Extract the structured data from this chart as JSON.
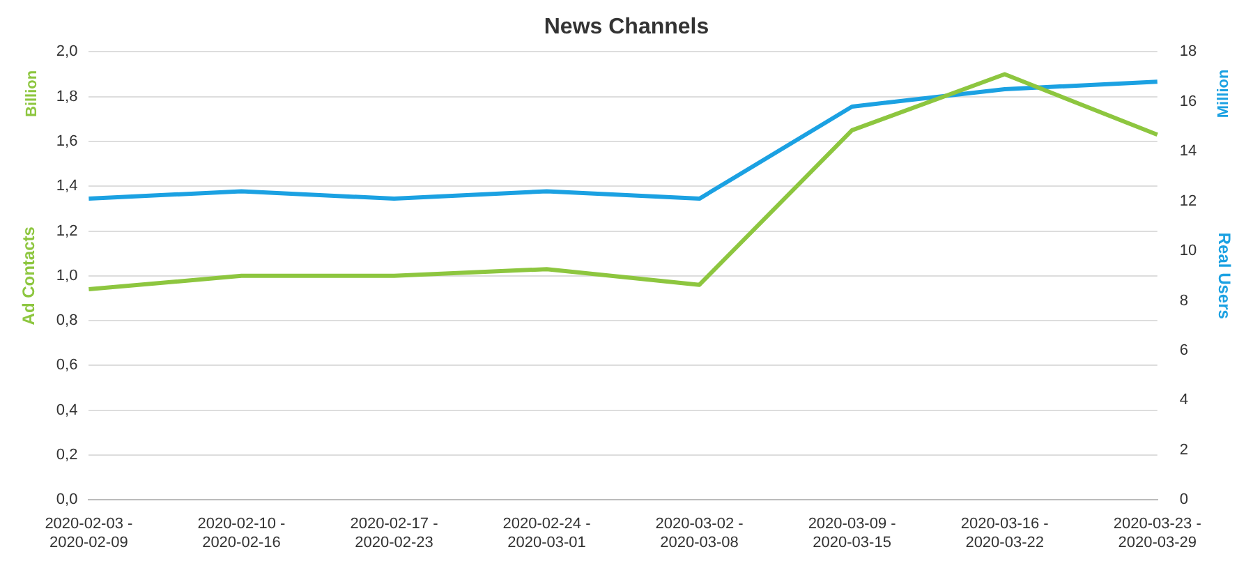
{
  "chart_data": {
    "type": "line",
    "title": "News Channels",
    "ylabel": "Ad Contacts",
    "y2label": "Real Users",
    "annotations": [
      "Billion",
      "Million"
    ],
    "categories": [
      "2020-02-03 -\n2020-02-09",
      "2020-02-10 -\n2020-02-16",
      "2020-02-17 -\n2020-02-23",
      "2020-02-24 -\n2020-03-01",
      "2020-03-02 -\n2020-03-08",
      "2020-03-09 -\n2020-03-15",
      "2020-03-16 -\n2020-03-22",
      "2020-03-23 -\n2020-03-29"
    ],
    "series": [
      {
        "color": "#8dc63f",
        "values": [
          0.94,
          1.0,
          1.0,
          1.03,
          0.96,
          1.65,
          1.9,
          1.63
        ]
      },
      {
        "color": "#1ba1e2",
        "axis": "y2",
        "values": [
          12.1,
          12.4,
          12.1,
          12.4,
          12.1,
          15.8,
          16.5,
          16.8
        ]
      }
    ],
    "ylim": [
      0,
      2
    ],
    "yticks": [
      {
        "value": 0,
        "label": "0,0"
      },
      {
        "value": 0.2,
        "label": "0,2"
      },
      {
        "value": 0.4,
        "label": "0,4"
      },
      {
        "value": 0.6,
        "label": "0,6"
      },
      {
        "value": 0.8,
        "label": "0,8"
      },
      {
        "value": 1,
        "label": "1,0"
      },
      {
        "value": 1.2,
        "label": "1,2"
      },
      {
        "value": 1.4,
        "label": "1,4"
      },
      {
        "value": 1.6,
        "label": "1,6"
      },
      {
        "value": 1.8,
        "label": "1,8"
      },
      {
        "value": 2,
        "label": "2,0"
      }
    ],
    "y2lim": [
      0,
      18
    ],
    "y2ticks": [
      0,
      2,
      4,
      6,
      8,
      10,
      12,
      14,
      16,
      18
    ],
    "grid": "y",
    "legend": false,
    "marker": "none",
    "line_style": "solid"
  }
}
